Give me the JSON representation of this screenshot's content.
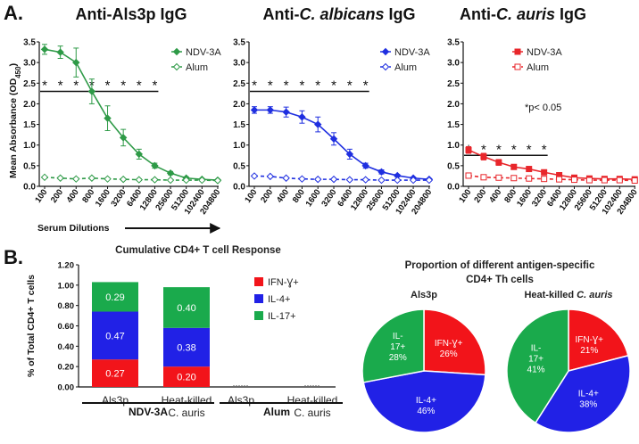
{
  "panel_a_letter": "A.",
  "panel_b_letter": "B.",
  "panel_a": {
    "ylabel": "Mean Absorbance (OD",
    "ylabel_sub": "450",
    "ylabel_end": ")",
    "xlabel": "Serum Dilutions",
    "note": "*p< 0.05",
    "sig_marker": "*"
  },
  "chart_data": [
    {
      "type": "line",
      "title": "Anti-Als3p IgG",
      "title_parts": [
        "Anti-Als3p IgG"
      ],
      "ylim": [
        0,
        3.5
      ],
      "yticks": [
        "0.0",
        "0.5",
        "1.0",
        "1.5",
        "2.0",
        "2.5",
        "3.0",
        "3.5"
      ],
      "x": [
        "100",
        "200",
        "400",
        "800",
        "1600",
        "3200",
        "6400",
        "12800",
        "25600",
        "51200",
        "102400",
        "204800"
      ],
      "color": "#2e9a47",
      "sig_count": 8,
      "sig_level": 2.3,
      "series": [
        {
          "name": "NDV-3A",
          "values": [
            3.32,
            3.25,
            3.0,
            2.3,
            1.65,
            1.18,
            0.78,
            0.5,
            0.32,
            0.2,
            0.17,
            0.15
          ],
          "errors": [
            0.12,
            0.15,
            0.35,
            0.3,
            0.3,
            0.2,
            0.12,
            0.06,
            0.04,
            0.03,
            0.02,
            0.02
          ],
          "style": "solid",
          "marker": "diamond-filled"
        },
        {
          "name": "Alum",
          "values": [
            0.22,
            0.2,
            0.18,
            0.2,
            0.18,
            0.17,
            0.16,
            0.16,
            0.15,
            0.15,
            0.15,
            0.14
          ],
          "errors": [
            0.02,
            0.02,
            0.02,
            0.02,
            0.02,
            0.02,
            0.02,
            0.02,
            0.02,
            0.02,
            0.02,
            0.02
          ],
          "style": "dashed",
          "marker": "diamond-open"
        }
      ]
    },
    {
      "type": "line",
      "title": "Anti-C. albicans IgG",
      "title_parts": [
        "Anti-",
        "C. albicans",
        " IgG"
      ],
      "ylim": [
        0,
        3.5
      ],
      "yticks": [
        "0.0",
        "0.5",
        "1.0",
        "1.5",
        "2.0",
        "2.5",
        "3.0",
        "3.5"
      ],
      "x": [
        "100",
        "200",
        "400",
        "800",
        "1600",
        "3200",
        "6400",
        "12800",
        "25600",
        "51200",
        "102400",
        "204800"
      ],
      "color": "#1f2fe0",
      "sig_count": 8,
      "sig_level": 2.3,
      "series": [
        {
          "name": "NDV-3A",
          "values": [
            1.85,
            1.85,
            1.8,
            1.68,
            1.5,
            1.15,
            0.78,
            0.5,
            0.35,
            0.26,
            0.2,
            0.17
          ],
          "errors": [
            0.08,
            0.08,
            0.12,
            0.15,
            0.18,
            0.15,
            0.12,
            0.06,
            0.05,
            0.03,
            0.02,
            0.02
          ],
          "style": "solid",
          "marker": "diamond-filled"
        },
        {
          "name": "Alum",
          "values": [
            0.25,
            0.24,
            0.2,
            0.18,
            0.17,
            0.17,
            0.16,
            0.16,
            0.15,
            0.15,
            0.15,
            0.15
          ],
          "errors": [
            0.02,
            0.02,
            0.02,
            0.02,
            0.02,
            0.02,
            0.02,
            0.02,
            0.02,
            0.02,
            0.02,
            0.02
          ],
          "style": "dashed",
          "marker": "diamond-open"
        }
      ]
    },
    {
      "type": "line",
      "title": "Anti-C. auris IgG",
      "title_parts": [
        "Anti-",
        "C. auris",
        " IgG"
      ],
      "ylim": [
        0,
        3.5
      ],
      "yticks": [
        "0.0",
        "0.5",
        "1.0",
        "1.5",
        "2.0",
        "2.5",
        "3.0",
        "3.5"
      ],
      "x": [
        "100",
        "200",
        "400",
        "800",
        "1600",
        "3200",
        "6400",
        "12800",
        "25600",
        "51200",
        "102400",
        "204800"
      ],
      "color": "#e8262b",
      "sig_count": 6,
      "sig_level": 0.75,
      "series": [
        {
          "name": "NDV-3A",
          "values": [
            0.88,
            0.72,
            0.58,
            0.47,
            0.42,
            0.34,
            0.27,
            0.21,
            0.19,
            0.18,
            0.18,
            0.17
          ],
          "errors": [
            0.08,
            0.08,
            0.07,
            0.06,
            0.06,
            0.05,
            0.03,
            0.02,
            0.02,
            0.02,
            0.02,
            0.02
          ],
          "style": "solid",
          "marker": "square-filled"
        },
        {
          "name": "Alum",
          "values": [
            0.26,
            0.22,
            0.21,
            0.2,
            0.19,
            0.18,
            0.17,
            0.16,
            0.15,
            0.15,
            0.15,
            0.14
          ],
          "errors": [
            0.02,
            0.02,
            0.02,
            0.02,
            0.02,
            0.02,
            0.02,
            0.02,
            0.02,
            0.02,
            0.02,
            0.02
          ],
          "style": "dashed",
          "marker": "square-open"
        }
      ]
    },
    {
      "type": "bar",
      "stacked": true,
      "title": "Cumulative CD4+ T cell Response",
      "ylabel": "% of Total CD4+ T cells",
      "ylim": [
        0,
        1.2
      ],
      "yticks": [
        "0.00",
        "0.20",
        "0.40",
        "0.60",
        "0.80",
        "1.00",
        "1.20"
      ],
      "categories": [
        {
          "line1": "Als3p",
          "line2": ""
        },
        {
          "line1": "Heat-killed",
          "line2": "C. auris"
        },
        {
          "line1": "Als3p",
          "line2": ""
        },
        {
          "line1": "Heat-killed",
          "line2": "C. auris"
        }
      ],
      "groups": [
        "NDV-3A",
        "Alum"
      ],
      "series": [
        {
          "name": "IFN-Ɣ+",
          "color": "#f2141a",
          "values": [
            0.27,
            0.2,
            0.0,
            0.0
          ],
          "labels": [
            "0.27",
            "0.20",
            "",
            ""
          ]
        },
        {
          "name": "IL-4+",
          "color": "#2121e6",
          "values": [
            0.47,
            0.38,
            0.0,
            0.0
          ],
          "labels": [
            "0.47",
            "0.38",
            "",
            ""
          ]
        },
        {
          "name": "IL-17+",
          "color": "#1aaa4c",
          "values": [
            0.29,
            0.4,
            0.0,
            0.0
          ],
          "labels": [
            "0.29",
            "0.40",
            "",
            ""
          ]
        }
      ]
    },
    {
      "type": "pie",
      "title": "Als3p",
      "slices": [
        {
          "label": "IFN-Ɣ+",
          "value": 26,
          "pct": "26%",
          "color": "#f2141a"
        },
        {
          "label": "IL-4+",
          "value": 46,
          "pct": "46%",
          "color": "#2121e6"
        },
        {
          "label": "IL-17+",
          "value": 28,
          "pct": "28%",
          "color": "#1aaa4c"
        }
      ]
    },
    {
      "type": "pie",
      "title": "Heat-killed C. auris",
      "title_parts": [
        "Heat-killed ",
        "C. auris"
      ],
      "slices": [
        {
          "label": "IFN-Ɣ+",
          "value": 21,
          "pct": "21%",
          "color": "#f2141a"
        },
        {
          "label": "IL-4+",
          "value": 38,
          "pct": "38%",
          "color": "#2121e6"
        },
        {
          "label": "IL-17+",
          "value": 41,
          "pct": "41%",
          "color": "#1aaa4c"
        }
      ]
    }
  ],
  "panel_b": {
    "pie_heading_line1": "Proportion of different antigen-specific",
    "pie_heading_line2": "CD4+ Th cells"
  }
}
